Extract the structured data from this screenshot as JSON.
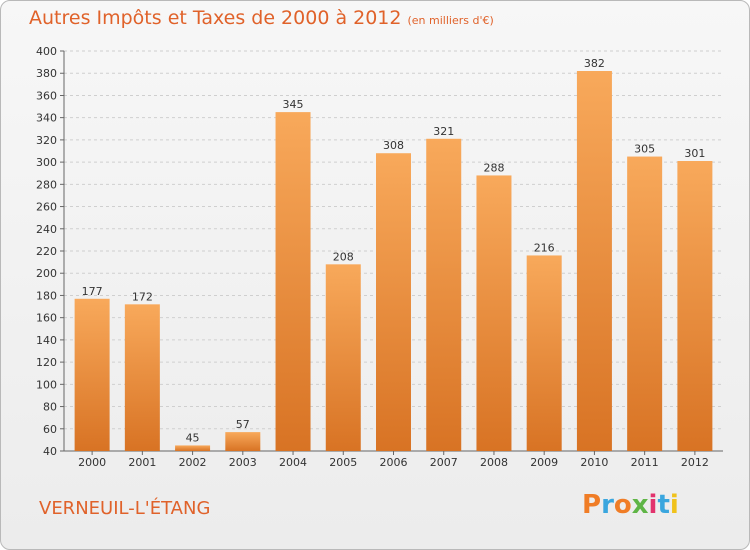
{
  "header": {
    "title": "Autres Impôts et Taxes de 2000 à 2012",
    "subtitle": "(en milliers d'€)"
  },
  "location_label": "VERNEUIL-L'ÉTANG",
  "logo": {
    "letters": [
      "P",
      "r",
      "o",
      "x",
      "i",
      "t",
      "i"
    ],
    "colors": [
      "#f07d26",
      "#3aa6de",
      "#f07d26",
      "#5fb546",
      "#e2336d",
      "#3aa6de",
      "#f0c21b"
    ]
  },
  "colors": {
    "accent": "#e0622a",
    "bar_light": "#f8a95b",
    "bar_dark": "#d87324",
    "grid": "#cfcfcf",
    "text": "#333333"
  },
  "chart_data": {
    "type": "bar",
    "categories": [
      "2000",
      "2001",
      "2002",
      "2003",
      "2004",
      "2005",
      "2006",
      "2007",
      "2008",
      "2009",
      "2010",
      "2011",
      "2012"
    ],
    "values": [
      177,
      172,
      45,
      57,
      345,
      208,
      308,
      321,
      288,
      216,
      382,
      305,
      301
    ],
    "data_labels": [
      "177",
      "172",
      "45",
      "57",
      "345",
      "208",
      "308",
      "321",
      "288",
      "216",
      "382",
      "305",
      "301"
    ],
    "y_ticks": [
      40,
      60,
      80,
      100,
      120,
      140,
      160,
      180,
      200,
      220,
      240,
      260,
      280,
      300,
      320,
      340,
      360,
      380,
      400
    ],
    "ylim": [
      40,
      400
    ],
    "grid": true,
    "legend": "none"
  }
}
